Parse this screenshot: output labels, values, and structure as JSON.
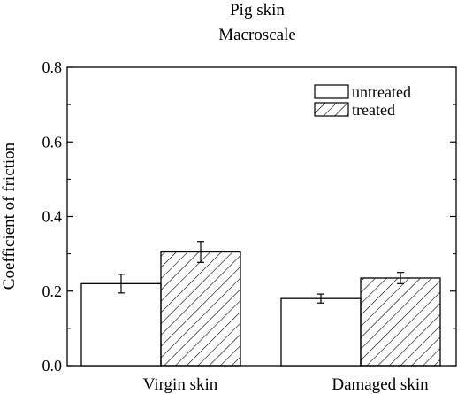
{
  "chart_data": {
    "type": "bar",
    "title": "Pig skin",
    "subtitle": "Macroscale",
    "xlabel": "",
    "ylabel": "Coefficient of friction",
    "ylim": [
      0,
      0.8
    ],
    "yticks": [
      "0.0",
      "0.2",
      "0.4",
      "0.6",
      "0.8"
    ],
    "categories": [
      "Virgin skin",
      "Damaged skin"
    ],
    "series": [
      {
        "name": "untreated",
        "values": [
          0.22,
          0.18
        ],
        "errors": [
          0.025,
          0.012
        ],
        "fill": "none"
      },
      {
        "name": "treated",
        "values": [
          0.305,
          0.235
        ],
        "errors": [
          0.028,
          0.015
        ],
        "fill": "hatched"
      }
    ],
    "legend_position": "top-right",
    "grid": false
  }
}
